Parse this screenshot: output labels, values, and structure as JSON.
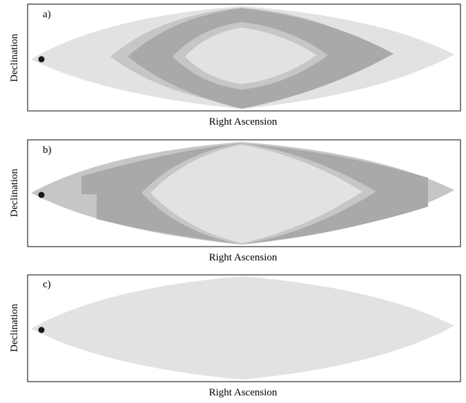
{
  "panels": [
    {
      "label": "a)",
      "xlabel": "Right Ascension",
      "ylabel": "Declination",
      "bands": [
        "light",
        "mid",
        "dark",
        "mid",
        "light"
      ]
    },
    {
      "label": "b)",
      "xlabel": "Right Ascension",
      "ylabel": "Declination",
      "bands": [
        "mid",
        "dark",
        "mid",
        "light"
      ]
    },
    {
      "label": "c)",
      "xlabel": "Right Ascension",
      "ylabel": "Declination",
      "bands": [
        "light"
      ]
    }
  ],
  "colors": {
    "light": "#e2e2e2",
    "mid": "#c6c6c6",
    "dark": "#a9a9a9",
    "marker": "#1a1a1a",
    "frame": "#000000"
  }
}
